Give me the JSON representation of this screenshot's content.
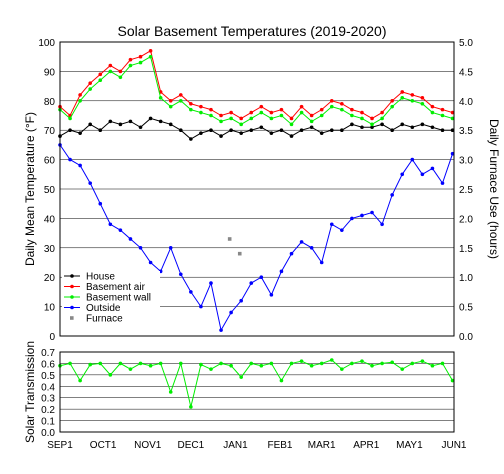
{
  "chart_data": [
    {
      "type": "line",
      "title": "Solar Basement Temperatures (2019-2020)",
      "ylabel": "Daily Mean Temperature (°F)",
      "y2label": "Daily Furnace Use (hours)",
      "ylim": [
        0,
        100
      ],
      "y2lim": [
        0.0,
        5.0
      ],
      "yticks": [
        "0",
        "10",
        "20",
        "30",
        "40",
        "50",
        "60",
        "70",
        "80",
        "90",
        "100"
      ],
      "y2ticks": [
        "0.0",
        "0.5",
        "1.0",
        "1.5",
        "2.0",
        "2.5",
        "3.0",
        "3.5",
        "4.0",
        "4.5",
        "5.0"
      ],
      "grid": true,
      "legend_position": "bottom-left",
      "legend": [
        {
          "label": "House",
          "color": "#000000",
          "marker": "dot"
        },
        {
          "label": "Basement air",
          "color": "#ff0000",
          "marker": "dot"
        },
        {
          "label": "Basement wall",
          "color": "#00ee00",
          "marker": "dot"
        },
        {
          "label": "Outside",
          "color": "#0000ff",
          "marker": "dot"
        },
        {
          "label": "Furnace",
          "color": "#888888",
          "marker": "square"
        }
      ],
      "series": [
        {
          "name": "House",
          "color": "#000000",
          "x": [
            0,
            7,
            14,
            21,
            28,
            35,
            42,
            49,
            56,
            63,
            70,
            77,
            84,
            91,
            98,
            105,
            112,
            119,
            126,
            133,
            140,
            147,
            154,
            161,
            168,
            175,
            182,
            189,
            196,
            203,
            210,
            217,
            224,
            231,
            238,
            245,
            252,
            259,
            266,
            273
          ],
          "y": [
            68,
            70,
            69,
            72,
            70,
            73,
            72,
            73,
            71,
            74,
            73,
            72,
            70,
            67,
            69,
            70,
            68,
            70,
            69,
            70,
            71,
            69,
            70,
            68,
            70,
            71,
            69,
            70,
            70,
            72,
            71,
            71,
            72,
            70,
            72,
            71,
            72,
            71,
            70,
            70
          ]
        },
        {
          "name": "Basement air",
          "color": "#ff0000",
          "x": [
            0,
            7,
            14,
            21,
            28,
            35,
            42,
            49,
            56,
            63,
            70,
            77,
            84,
            91,
            98,
            105,
            112,
            119,
            126,
            133,
            140,
            147,
            154,
            161,
            168,
            175,
            182,
            189,
            196,
            203,
            210,
            217,
            224,
            231,
            238,
            245,
            252,
            259,
            266,
            273
          ],
          "y": [
            78,
            75,
            82,
            86,
            89,
            92,
            90,
            94,
            95,
            97,
            83,
            80,
            82,
            79,
            78,
            77,
            75,
            76,
            74,
            76,
            78,
            76,
            77,
            74,
            78,
            75,
            77,
            80,
            79,
            77,
            76,
            74,
            76,
            80,
            83,
            82,
            81,
            78,
            77,
            76
          ]
        },
        {
          "name": "Basement wall",
          "color": "#00ee00",
          "x": [
            0,
            7,
            14,
            21,
            28,
            35,
            42,
            49,
            56,
            63,
            70,
            77,
            84,
            91,
            98,
            105,
            112,
            119,
            126,
            133,
            140,
            147,
            154,
            161,
            168,
            175,
            182,
            189,
            196,
            203,
            210,
            217,
            224,
            231,
            238,
            245,
            252,
            259,
            266,
            273
          ],
          "y": [
            77,
            74,
            80,
            84,
            87,
            90,
            88,
            92,
            93,
            95,
            81,
            78,
            80,
            77,
            76,
            75,
            73,
            74,
            72,
            74,
            76,
            74,
            75,
            72,
            76,
            73,
            75,
            78,
            77,
            75,
            74,
            72,
            74,
            78,
            81,
            80,
            79,
            76,
            75,
            74
          ]
        },
        {
          "name": "Outside",
          "color": "#0000ff",
          "x": [
            0,
            7,
            14,
            21,
            28,
            35,
            42,
            49,
            56,
            63,
            70,
            77,
            84,
            91,
            98,
            105,
            112,
            119,
            126,
            133,
            140,
            147,
            154,
            161,
            168,
            175,
            182,
            189,
            196,
            203,
            210,
            217,
            224,
            231,
            238,
            245,
            252,
            259,
            266,
            273
          ],
          "y": [
            65,
            60,
            58,
            52,
            45,
            38,
            36,
            33,
            30,
            25,
            22,
            30,
            21,
            15,
            10,
            18,
            2,
            8,
            12,
            18,
            20,
            14,
            22,
            28,
            32,
            30,
            25,
            38,
            36,
            40,
            41,
            42,
            38,
            48,
            55,
            60,
            55,
            57,
            52,
            62
          ]
        },
        {
          "name": "Furnace",
          "color": "#888888",
          "x": [
            118,
            125
          ],
          "y": [
            1.65,
            1.4
          ]
        }
      ]
    },
    {
      "type": "line",
      "ylabel": "Solar Transmission",
      "ylim": [
        0.0,
        0.7
      ],
      "yticks": [
        "0.0",
        "0.1",
        "0.2",
        "0.3",
        "0.4",
        "0.5",
        "0.6",
        "0.7"
      ],
      "xticks": [
        "SEP1",
        "OCT1",
        "NOV1",
        "DEC1",
        "JAN1",
        "FEB1",
        "MAR1",
        "APR1",
        "MAY1",
        "JUN1"
      ],
      "xtick_days": [
        0,
        30,
        61,
        91,
        122,
        153,
        182,
        213,
        243,
        274
      ],
      "grid": true,
      "series": [
        {
          "name": "Solar Transmission",
          "color": "#00ee00",
          "x": [
            0,
            7,
            14,
            21,
            28,
            35,
            42,
            49,
            56,
            63,
            70,
            77,
            84,
            91,
            98,
            105,
            112,
            119,
            126,
            133,
            140,
            147,
            154,
            161,
            168,
            175,
            182,
            189,
            196,
            203,
            210,
            217,
            224,
            231,
            238,
            245,
            252,
            259,
            266,
            273
          ],
          "y": [
            0.58,
            0.6,
            0.45,
            0.59,
            0.6,
            0.5,
            0.6,
            0.55,
            0.6,
            0.58,
            0.6,
            0.35,
            0.6,
            0.22,
            0.59,
            0.55,
            0.6,
            0.58,
            0.48,
            0.6,
            0.58,
            0.6,
            0.45,
            0.6,
            0.62,
            0.58,
            0.6,
            0.63,
            0.55,
            0.6,
            0.62,
            0.58,
            0.6,
            0.61,
            0.55,
            0.6,
            0.62,
            0.58,
            0.6,
            0.45
          ]
        }
      ]
    }
  ]
}
